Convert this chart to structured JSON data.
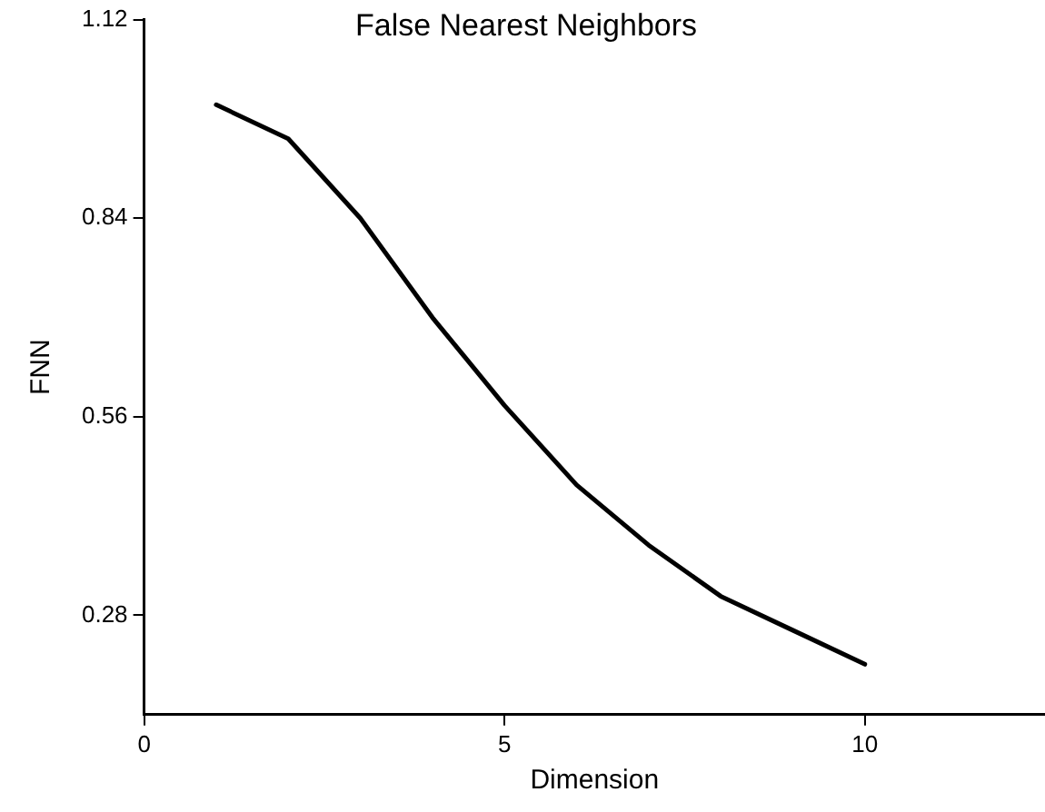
{
  "chart_data": {
    "type": "line",
    "title": "False Nearest Neighbors",
    "xlabel": "Dimension",
    "ylabel": "FNN",
    "x": [
      1,
      2,
      3,
      4,
      5,
      6,
      7,
      8,
      9,
      10
    ],
    "series": [
      {
        "color": "#000000",
        "values": [
          1.0,
          0.952,
          0.84,
          0.7,
          0.576,
          0.464,
          0.379,
          0.307,
          0.259,
          0.211
        ]
      }
    ],
    "xlim": [
      0,
      12.5
    ],
    "xticks": [
      0,
      5,
      10
    ],
    "ylim": [
      0.14,
      1.12
    ],
    "yticks": [
      0.28,
      0.56,
      0.84,
      1.12
    ],
    "grid": false,
    "legend": false,
    "marker": "none",
    "line_style": "solid"
  }
}
